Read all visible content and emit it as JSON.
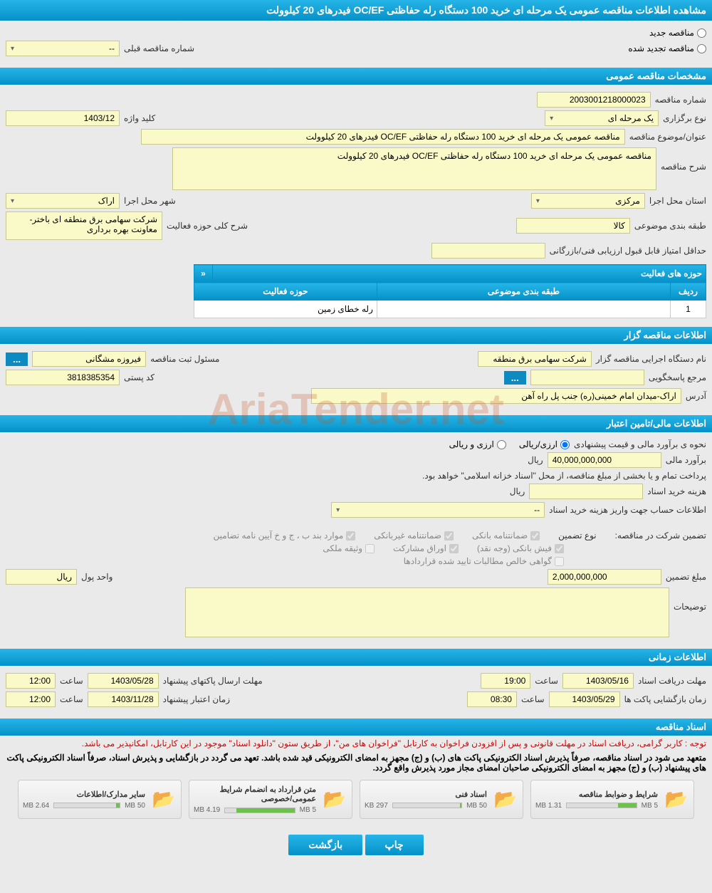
{
  "header": {
    "title": "مشاهده اطلاعات مناقصه عمومی یک مرحله ای خرید 100 دستگاه رله حفاظتی OC/EF فیدرهای 20 کیلوولت"
  },
  "top": {
    "radio_new": "مناقصه جدید",
    "radio_renew": "مناقصه تجدید شده",
    "prev_number_label": "شماره مناقصه قبلی",
    "prev_number_value": "--"
  },
  "s1": {
    "title": "مشخصات مناقصه عمومی",
    "tender_no_label": "شماره مناقصه",
    "tender_no": "2003001218000023",
    "type_label": "نوع برگزاری",
    "type_value": "یک مرحله ای",
    "key_label": "کلید واژه",
    "key_value": "1403/12",
    "subject_label": "عنوان/موضوع مناقصه",
    "subject_value": "مناقصه عمومی یک مرحله ای خرید 100 دستگاه رله  حفاظتی OC/EF  فیدرهای 20 کیلوولت",
    "desc_label": "شرح مناقصه",
    "desc_value": "مناقصه عمومی یک مرحله ای خرید 100 دستگاه رله  حفاظتی OC/EF  فیدرهای 20 کیلوولت",
    "province_label": "استان محل اجرا",
    "province_value": "مرکزی",
    "city_label": "شهر محل اجرا",
    "city_value": "اراک",
    "category_label": "طبقه بندی موضوعی",
    "category_value": "کالا",
    "scope_label": "شرح کلی حوزه فعالیت",
    "scope_value": "شرکت سهامی برق منطقه ای باختر- معاونت بهره برداری",
    "min_score_label": "حداقل امتیاز قابل قبول ارزیابی فنی/بازرگانی",
    "activity_table_title": "حوزه های فعالیت",
    "col_row": "ردیف",
    "col_cat": "طبقه بندی موضوعی",
    "col_act": "حوزه فعالیت",
    "row1_idx": "1",
    "row1_act": "رله خطای زمین",
    "corner": "«"
  },
  "s2": {
    "title": "اطلاعات مناقصه گزار",
    "org_label": "نام دستگاه اجرایی مناقصه گزار",
    "org_value": "شرکت سهامی برق منطقه",
    "reg_label": "مسئول ثبت مناقصه",
    "reg_value": "فیروزه مشگانی",
    "resp_label": "مرجع پاسخگویی",
    "postal_label": "کد پستی",
    "postal_value": "3818385354",
    "addr_label": "آدرس",
    "addr_value": "اراک-میدان امام خمینی(ره) جنب پل راه آهن",
    "ell": "..."
  },
  "s3": {
    "title": "اطلاعات مالی/تامین اعتبار",
    "est_label": "نحوه ی برآورد مالی و قیمت پیشنهادی",
    "opt1": "ارزی/ریالی",
    "opt2": "ارزی و ریالی",
    "amount_label": "برآورد مالی",
    "amount_value": "40,000,000,000",
    "rial": "ریال",
    "pay_note": "پرداخت تمام و یا بخشی از مبلغ مناقصه، از محل \"اسناد خزانه اسلامی\" خواهد بود.",
    "doc_cost_label": "هزینه خرید اسناد",
    "acct_label": "اطلاعات حساب جهت واریز هزینه خرید اسناد",
    "acct_value": "--",
    "guar_label": "تضمین شرکت در مناقصه:",
    "guar_type_label": "نوع تضمین",
    "g1": "ضمانتنامه بانکی",
    "g2": "ضمانتنامه غیربانکی",
    "g3": "موارد بند ب ، ج و خ آیین نامه تضامین",
    "g4": "فیش بانکی (وجه نقد)",
    "g5": "اوراق مشارکت",
    "g6": "وثیقه ملکی",
    "g7": "گواهی خالص مطالبات تایید شده قراردادها",
    "guar_amt_label": "مبلغ تضمین",
    "guar_amt_value": "2,000,000,000",
    "unit_label": "واحد پول",
    "unit_value": "ریال",
    "notes_label": "توضیحات"
  },
  "s4": {
    "title": "اطلاعات زمانی",
    "doc_deadline_label": "مهلت دریافت اسناد",
    "doc_deadline_date": "1403/05/16",
    "doc_deadline_time": "19:00",
    "bid_deadline_label": "مهلت ارسال پاکتهای پیشنهاد",
    "bid_deadline_date": "1403/05/28",
    "bid_deadline_time": "12:00",
    "open_label": "زمان بازگشایی پاکت ها",
    "open_date": "1403/05/29",
    "open_time": "08:30",
    "valid_label": "زمان اعتبار پیشنهاد",
    "valid_date": "1403/11/28",
    "valid_time": "12:00",
    "time_lbl": "ساعت"
  },
  "s5": {
    "title": "اسناد مناقصه",
    "note1": "توجه : کاربر گرامی، دریافت اسناد در مهلت قانونی و پس از افزودن فراخوان به کارتابل \"فراخوان های من\"، از طریق ستون \"دانلود اسناد\" موجود در این کارتابل، امکانپذیر می باشد.",
    "note2": "متعهد می شود در اسناد مناقصه، صرفاً پذیرش اسناد الکترونیکی پاکت های (ب) و (ج) مجهز به امضای الکترونیکی قید شده باشد. تعهد می گردد در بازگشایی و پذیرش اسناد، صرفاً اسناد الکترونیکی پاکت های پیشنهاد (ب) و (ج) مجهز به امضای الکترونیکی صاحبان امضای مجاز مورد پذیرش واقع گردد.",
    "docs": [
      {
        "title": "شرایط و ضوابط مناقصه",
        "size": "1.31 MB",
        "cap": "5 MB",
        "pct": 26
      },
      {
        "title": "اسناد فنی",
        "size": "297 KB",
        "cap": "50 MB",
        "pct": 2
      },
      {
        "title": "متن قرارداد به انضمام شرایط عمومی/خصوصی",
        "size": "4.19 MB",
        "cap": "5 MB",
        "pct": 84
      },
      {
        "title": "سایر مدارک/اطلاعات",
        "size": "2.64 MB",
        "cap": "50 MB",
        "pct": 6
      }
    ]
  },
  "buttons": {
    "print": "چاپ",
    "back": "بازگشت"
  },
  "watermark": "AriaTender.net"
}
